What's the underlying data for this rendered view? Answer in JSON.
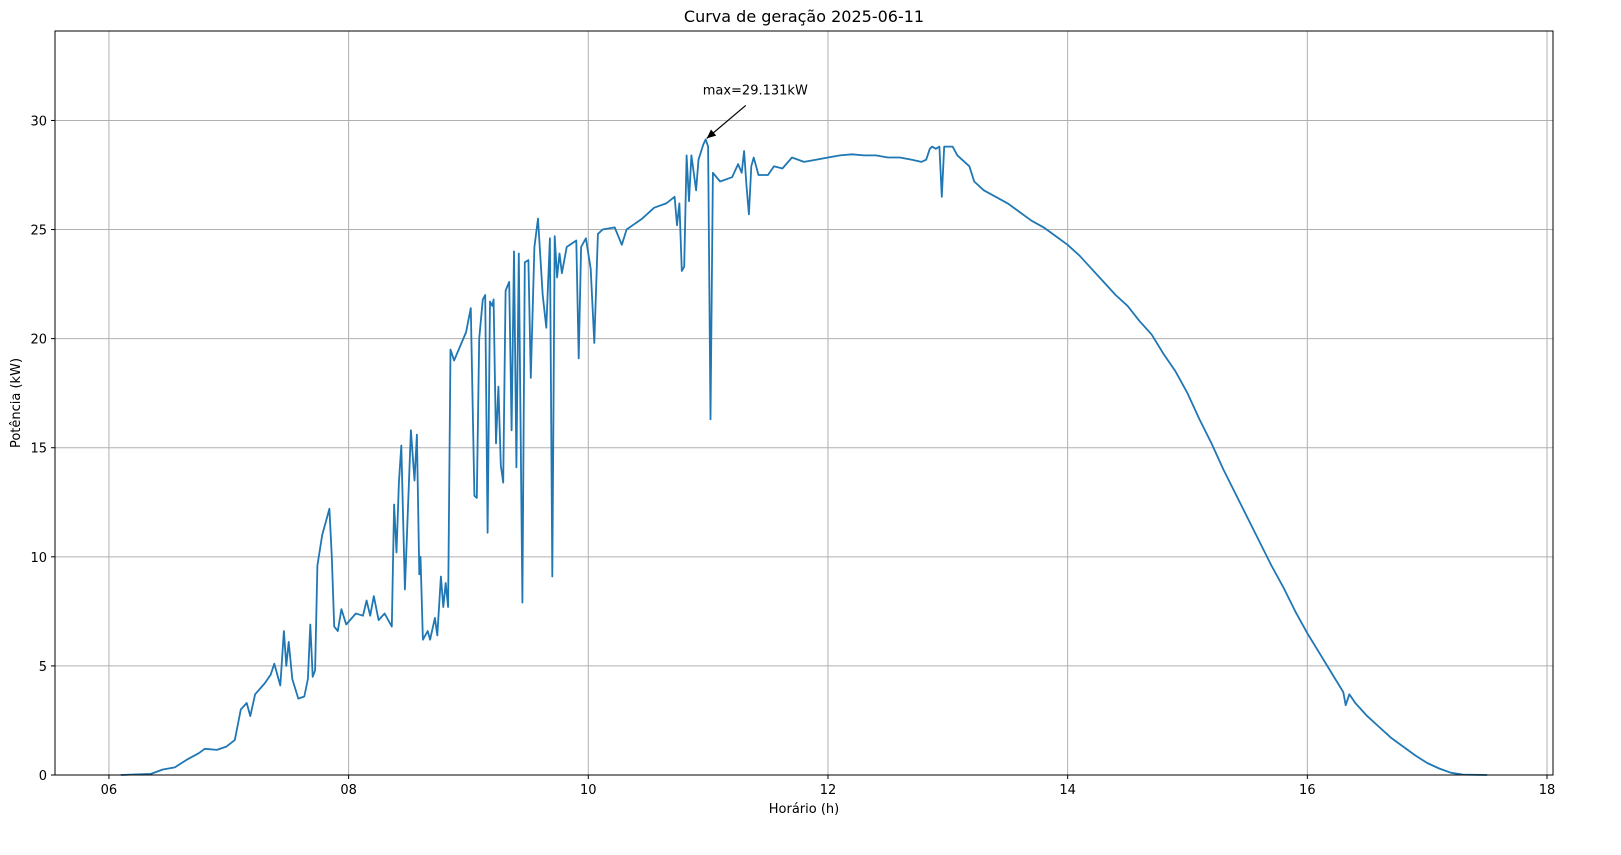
{
  "chart_data": {
    "type": "line",
    "title": "Curva de geração 2025-06-11",
    "xlabel": "Horário (h)",
    "ylabel": "Potência (kW)",
    "xlim": [
      5.55,
      18.05
    ],
    "ylim": [
      0,
      34.1
    ],
    "grid": true,
    "x_ticks": [
      {
        "value": 6,
        "label": "06"
      },
      {
        "value": 8,
        "label": "08"
      },
      {
        "value": 10,
        "label": "10"
      },
      {
        "value": 12,
        "label": "12"
      },
      {
        "value": 14,
        "label": "14"
      },
      {
        "value": 16,
        "label": "16"
      },
      {
        "value": 18,
        "label": "18"
      }
    ],
    "y_ticks": [
      {
        "value": 0,
        "label": "0"
      },
      {
        "value": 5,
        "label": "5"
      },
      {
        "value": 10,
        "label": "10"
      },
      {
        "value": 15,
        "label": "15"
      },
      {
        "value": 20,
        "label": "20"
      },
      {
        "value": 25,
        "label": "25"
      },
      {
        "value": 30,
        "label": "30"
      }
    ],
    "series": [
      {
        "name": "Potência",
        "color": "#1f77b4",
        "points": [
          [
            6.1,
            0
          ],
          [
            6.35,
            0.05
          ],
          [
            6.45,
            0.25
          ],
          [
            6.55,
            0.35
          ],
          [
            6.65,
            0.7
          ],
          [
            6.75,
            1.0
          ],
          [
            6.8,
            1.2
          ],
          [
            6.9,
            1.15
          ],
          [
            6.98,
            1.3
          ],
          [
            7.05,
            1.6
          ],
          [
            7.1,
            3.0
          ],
          [
            7.15,
            3.3
          ],
          [
            7.18,
            2.7
          ],
          [
            7.22,
            3.7
          ],
          [
            7.3,
            4.2
          ],
          [
            7.35,
            4.6
          ],
          [
            7.38,
            5.1
          ],
          [
            7.43,
            4.1
          ],
          [
            7.46,
            6.6
          ],
          [
            7.48,
            5.0
          ],
          [
            7.5,
            6.1
          ],
          [
            7.53,
            4.4
          ],
          [
            7.58,
            3.5
          ],
          [
            7.63,
            3.6
          ],
          [
            7.66,
            4.4
          ],
          [
            7.68,
            6.9
          ],
          [
            7.7,
            4.5
          ],
          [
            7.72,
            4.8
          ],
          [
            7.74,
            9.6
          ],
          [
            7.78,
            11.0
          ],
          [
            7.84,
            12.2
          ],
          [
            7.86,
            10.0
          ],
          [
            7.88,
            6.8
          ],
          [
            7.91,
            6.6
          ],
          [
            7.94,
            7.6
          ],
          [
            7.98,
            6.9
          ],
          [
            8.06,
            7.4
          ],
          [
            8.12,
            7.3
          ],
          [
            8.15,
            8.0
          ],
          [
            8.18,
            7.3
          ],
          [
            8.21,
            8.2
          ],
          [
            8.25,
            7.1
          ],
          [
            8.3,
            7.4
          ],
          [
            8.36,
            6.8
          ],
          [
            8.38,
            12.4
          ],
          [
            8.4,
            10.2
          ],
          [
            8.42,
            13.4
          ],
          [
            8.44,
            15.1
          ],
          [
            8.47,
            8.5
          ],
          [
            8.52,
            15.8
          ],
          [
            8.55,
            13.5
          ],
          [
            8.57,
            15.6
          ],
          [
            8.59,
            9.2
          ],
          [
            8.6,
            10.0
          ],
          [
            8.62,
            6.2
          ],
          [
            8.66,
            6.6
          ],
          [
            8.68,
            6.2
          ],
          [
            8.72,
            7.2
          ],
          [
            8.74,
            6.4
          ],
          [
            8.77,
            9.1
          ],
          [
            8.79,
            7.7
          ],
          [
            8.81,
            8.8
          ],
          [
            8.83,
            7.7
          ],
          [
            8.85,
            19.5
          ],
          [
            8.88,
            19.0
          ],
          [
            8.98,
            20.3
          ],
          [
            9.02,
            21.4
          ],
          [
            9.05,
            12.8
          ],
          [
            9.07,
            12.7
          ],
          [
            9.09,
            20.0
          ],
          [
            9.12,
            21.8
          ],
          [
            9.14,
            22.0
          ],
          [
            9.16,
            11.1
          ],
          [
            9.18,
            21.7
          ],
          [
            9.2,
            21.5
          ],
          [
            9.21,
            21.8
          ],
          [
            9.23,
            15.2
          ],
          [
            9.25,
            17.8
          ],
          [
            9.27,
            14.2
          ],
          [
            9.29,
            13.4
          ],
          [
            9.31,
            22.2
          ],
          [
            9.34,
            22.6
          ],
          [
            9.36,
            15.8
          ],
          [
            9.38,
            24.0
          ],
          [
            9.4,
            14.1
          ],
          [
            9.42,
            23.9
          ],
          [
            9.45,
            7.9
          ],
          [
            9.47,
            23.5
          ],
          [
            9.5,
            23.6
          ],
          [
            9.52,
            18.2
          ],
          [
            9.55,
            24.2
          ],
          [
            9.58,
            25.5
          ],
          [
            9.62,
            22.0
          ],
          [
            9.65,
            20.5
          ],
          [
            9.68,
            24.6
          ],
          [
            9.7,
            9.1
          ],
          [
            9.72,
            24.7
          ],
          [
            9.74,
            22.8
          ],
          [
            9.76,
            23.9
          ],
          [
            9.78,
            23.0
          ],
          [
            9.82,
            24.2
          ],
          [
            9.9,
            24.5
          ],
          [
            9.92,
            19.1
          ],
          [
            9.94,
            24.2
          ],
          [
            9.98,
            24.6
          ],
          [
            10.02,
            23.2
          ],
          [
            10.05,
            19.8
          ],
          [
            10.08,
            24.8
          ],
          [
            10.12,
            25.0
          ],
          [
            10.22,
            25.1
          ],
          [
            10.28,
            24.3
          ],
          [
            10.32,
            25.0
          ],
          [
            10.45,
            25.5
          ],
          [
            10.55,
            26.0
          ],
          [
            10.65,
            26.2
          ],
          [
            10.72,
            26.5
          ],
          [
            10.74,
            25.2
          ],
          [
            10.76,
            26.2
          ],
          [
            10.78,
            23.1
          ],
          [
            10.8,
            23.3
          ],
          [
            10.82,
            28.4
          ],
          [
            10.84,
            26.3
          ],
          [
            10.86,
            28.4
          ],
          [
            10.9,
            26.8
          ],
          [
            10.92,
            28.2
          ],
          [
            10.96,
            28.9
          ],
          [
            10.98,
            29.131
          ],
          [
            11.0,
            28.8
          ],
          [
            11.02,
            16.3
          ],
          [
            11.04,
            27.6
          ],
          [
            11.1,
            27.2
          ],
          [
            11.2,
            27.4
          ],
          [
            11.25,
            28.0
          ],
          [
            11.28,
            27.6
          ],
          [
            11.3,
            28.6
          ],
          [
            11.32,
            27.0
          ],
          [
            11.34,
            25.7
          ],
          [
            11.36,
            27.9
          ],
          [
            11.38,
            28.3
          ],
          [
            11.42,
            27.5
          ],
          [
            11.5,
            27.5
          ],
          [
            11.55,
            27.9
          ],
          [
            11.62,
            27.8
          ],
          [
            11.7,
            28.3
          ],
          [
            11.8,
            28.1
          ],
          [
            11.9,
            28.2
          ],
          [
            12.0,
            28.3
          ],
          [
            12.1,
            28.4
          ],
          [
            12.2,
            28.45
          ],
          [
            12.3,
            28.4
          ],
          [
            12.4,
            28.4
          ],
          [
            12.5,
            28.3
          ],
          [
            12.6,
            28.3
          ],
          [
            12.7,
            28.2
          ],
          [
            12.78,
            28.1
          ],
          [
            12.82,
            28.2
          ],
          [
            12.85,
            28.7
          ],
          [
            12.87,
            28.8
          ],
          [
            12.9,
            28.7
          ],
          [
            12.93,
            28.8
          ],
          [
            12.95,
            26.5
          ],
          [
            12.97,
            28.8
          ],
          [
            13.04,
            28.8
          ],
          [
            13.08,
            28.4
          ],
          [
            13.18,
            27.9
          ],
          [
            13.22,
            27.2
          ],
          [
            13.3,
            26.8
          ],
          [
            13.4,
            26.5
          ],
          [
            13.5,
            26.2
          ],
          [
            13.6,
            25.8
          ],
          [
            13.7,
            25.4
          ],
          [
            13.8,
            25.1
          ],
          [
            13.9,
            24.7
          ],
          [
            14.0,
            24.3
          ],
          [
            14.1,
            23.8
          ],
          [
            14.2,
            23.2
          ],
          [
            14.3,
            22.6
          ],
          [
            14.4,
            22.0
          ],
          [
            14.5,
            21.5
          ],
          [
            14.6,
            20.8
          ],
          [
            14.7,
            20.2
          ],
          [
            14.8,
            19.3
          ],
          [
            14.9,
            18.5
          ],
          [
            15.0,
            17.5
          ],
          [
            15.1,
            16.3
          ],
          [
            15.2,
            15.2
          ],
          [
            15.3,
            14.0
          ],
          [
            15.4,
            12.9
          ],
          [
            15.5,
            11.8
          ],
          [
            15.6,
            10.7
          ],
          [
            15.7,
            9.6
          ],
          [
            15.8,
            8.6
          ],
          [
            15.9,
            7.5
          ],
          [
            16.0,
            6.5
          ],
          [
            16.1,
            5.6
          ],
          [
            16.2,
            4.7
          ],
          [
            16.3,
            3.8
          ],
          [
            16.32,
            3.2
          ],
          [
            16.35,
            3.7
          ],
          [
            16.4,
            3.3
          ],
          [
            16.5,
            2.7
          ],
          [
            16.6,
            2.2
          ],
          [
            16.7,
            1.7
          ],
          [
            16.8,
            1.3
          ],
          [
            16.9,
            0.9
          ],
          [
            17.0,
            0.55
          ],
          [
            17.1,
            0.3
          ],
          [
            17.2,
            0.1
          ],
          [
            17.3,
            0.02
          ],
          [
            17.5,
            0
          ]
        ]
      }
    ],
    "annotation": {
      "text": "max=29.131kW",
      "x": 10.98,
      "y": 29.131
    }
  }
}
